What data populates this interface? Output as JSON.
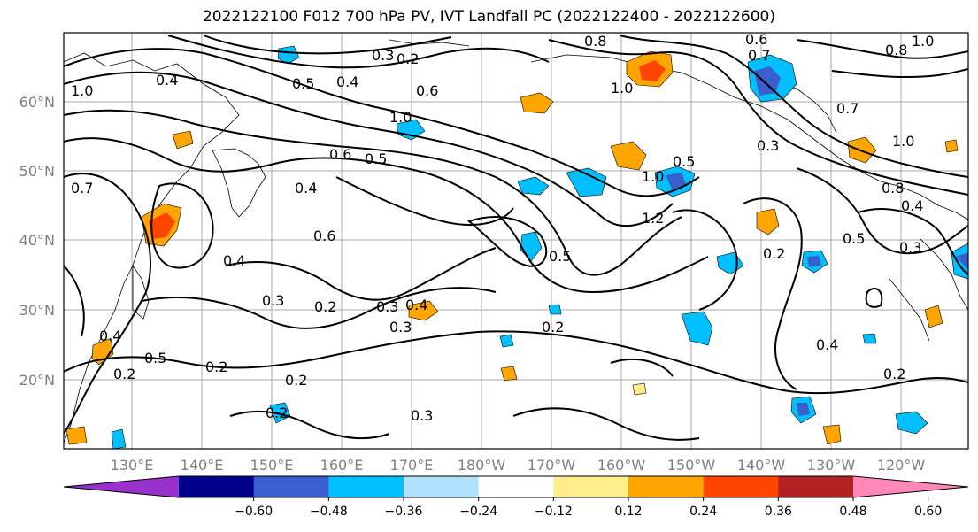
{
  "title": "2022122100 F012 700 hPa PV, IVT Landfall PC (2022122400 - 2022122600)",
  "lat_labels": [
    "60°N",
    "50°N",
    "40°N",
    "30°N",
    "20°N"
  ],
  "lon_labels": [
    "130°E",
    "140°E",
    "150°E",
    "160°E",
    "170°E",
    "180°W",
    "170°W",
    "160°W",
    "150°W",
    "140°W",
    "130°W",
    "120°W"
  ],
  "contour_labels": [
    "1.0",
    "0.8",
    "0.6",
    "0.4",
    "0.2",
    "0.3",
    "0.5",
    "0.7",
    "1.2"
  ],
  "colorbar": {
    "ticks": [
      "−0.60",
      "−0.48",
      "−0.36",
      "−0.24",
      "−0.12",
      "0.12",
      "0.24",
      "0.36",
      "0.48",
      "0.60"
    ],
    "colors": [
      "#9932cc",
      "#00008b",
      "#3a5fcd",
      "#00bfff",
      "#b0e2ff",
      "#ffffff",
      "#ffec8b",
      "#ffa500",
      "#ff4500",
      "#b22222",
      "#ff88b8"
    ]
  }
}
